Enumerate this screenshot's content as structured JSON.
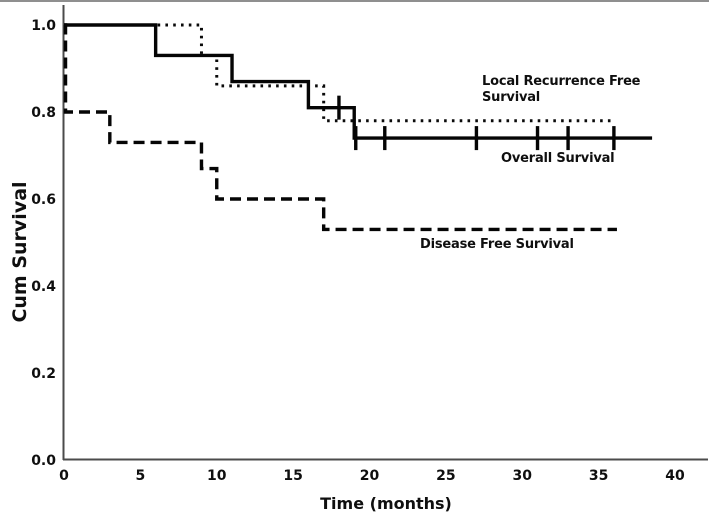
{
  "chart_data": {
    "type": "line",
    "subtype": "kaplan_meier_survival_step",
    "title": "",
    "xlabel": "Time (months)",
    "ylabel": "Cum Survival",
    "xlim": [
      0,
      40
    ],
    "ylim": [
      0.0,
      1.0
    ],
    "x_ticks": [
      0,
      5,
      10,
      15,
      20,
      25,
      30,
      35,
      40
    ],
    "y_ticks": [
      0.0,
      0.2,
      0.4,
      0.6,
      0.8,
      1.0
    ],
    "grid": false,
    "background_color": "#ffffff",
    "curve_color": "#000000",
    "axis_color": "#4b4b4b",
    "legend_position": "inline-annotations",
    "series": [
      {
        "name": "Disease Free Survival",
        "line_style": "dashed",
        "steps": [
          [
            0,
            1.0
          ],
          [
            0.1,
            0.8
          ],
          [
            3,
            0.73
          ],
          [
            9,
            0.67
          ],
          [
            10,
            0.6
          ],
          [
            17,
            0.53
          ]
        ],
        "end_month": 36.2,
        "final_value": 0.53,
        "censor_marks": []
      },
      {
        "name": "Local Recurrence Free Survival",
        "line_style": "dotted",
        "steps": [
          [
            0,
            1.0
          ],
          [
            9,
            0.93
          ],
          [
            10,
            0.86
          ],
          [
            17,
            0.78
          ]
        ],
        "end_month": 36.1,
        "final_value": 0.78,
        "censor_marks": []
      },
      {
        "name": "Overall Survival",
        "line_style": "solid",
        "steps": [
          [
            0,
            1.0
          ],
          [
            6,
            0.93
          ],
          [
            11,
            0.87
          ],
          [
            16,
            0.81
          ],
          [
            19,
            0.74
          ]
        ],
        "end_month": 38.5,
        "final_value": 0.74,
        "censor_marks": [
          [
            18,
            0.81
          ],
          [
            19.1,
            0.74
          ],
          [
            21,
            0.74
          ],
          [
            27,
            0.74
          ],
          [
            31,
            0.74
          ],
          [
            33,
            0.74
          ],
          [
            36,
            0.74
          ]
        ]
      }
    ]
  }
}
